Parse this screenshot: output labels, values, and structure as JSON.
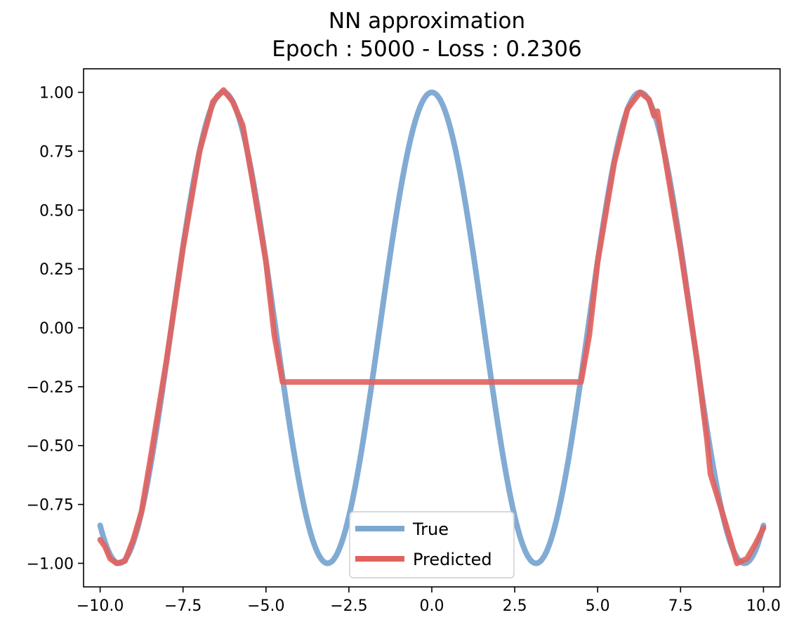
{
  "chart_data": {
    "type": "line",
    "title_line1": "NN approximation",
    "title_line2": "Epoch : 5000 - Loss : 0.2306",
    "xlabel": "",
    "ylabel": "",
    "xlim": [
      -10.5,
      10.5
    ],
    "ylim": [
      -1.1,
      1.1
    ],
    "grid": false,
    "legend_position": "lower-center",
    "xticks": [
      -10.0,
      -7.5,
      -5.0,
      -2.5,
      0.0,
      2.5,
      5.0,
      7.5,
      10.0
    ],
    "xtick_labels": [
      "−10.0",
      "−7.5",
      "−5.0",
      "−2.5",
      "0.0",
      "2.5",
      "5.0",
      "7.5",
      "10.0"
    ],
    "yticks": [
      1.0,
      0.75,
      0.5,
      0.25,
      0.0,
      -0.25,
      -0.5,
      -0.75,
      -1.0
    ],
    "ytick_labels": [
      "1.00",
      "0.75",
      "0.50",
      "0.25",
      "0.00",
      "−0.25",
      "−0.50",
      "−0.75",
      "−1.00"
    ],
    "series": [
      {
        "name": "True",
        "color": "#7ba7d1",
        "function": "cos",
        "x_range": [
          -10,
          10
        ]
      },
      {
        "name": "Predicted",
        "color": "#e3615c",
        "points": [
          [
            -10.0,
            -0.9
          ],
          [
            -9.85,
            -0.93
          ],
          [
            -9.7,
            -0.98
          ],
          [
            -9.5,
            -1.0
          ],
          [
            -9.25,
            -0.99
          ],
          [
            -9.0,
            -0.9
          ],
          [
            -8.75,
            -0.78
          ],
          [
            -8.5,
            -0.57
          ],
          [
            -8.0,
            -0.14
          ],
          [
            -7.5,
            0.34
          ],
          [
            -7.0,
            0.75
          ],
          [
            -6.6,
            0.96
          ],
          [
            -6.28,
            1.01
          ],
          [
            -6.0,
            0.96
          ],
          [
            -5.7,
            0.86
          ],
          [
            -5.4,
            0.62
          ],
          [
            -5.0,
            0.28
          ],
          [
            -4.75,
            -0.03
          ],
          [
            -4.5,
            -0.23
          ],
          [
            4.5,
            -0.23
          ],
          [
            4.75,
            -0.03
          ],
          [
            5.0,
            0.28
          ],
          [
            5.5,
            0.7
          ],
          [
            5.9,
            0.93
          ],
          [
            6.28,
            1.0
          ],
          [
            6.55,
            0.97
          ],
          [
            6.7,
            0.9
          ],
          [
            6.8,
            0.92
          ],
          [
            7.0,
            0.75
          ],
          [
            7.5,
            0.33
          ],
          [
            8.0,
            -0.14
          ],
          [
            8.3,
            -0.48
          ],
          [
            8.4,
            -0.62
          ],
          [
            8.75,
            -0.78
          ],
          [
            9.0,
            -0.9
          ],
          [
            9.2,
            -1.0
          ],
          [
            9.5,
            -0.98
          ],
          [
            9.75,
            -0.92
          ],
          [
            10.0,
            -0.85
          ]
        ]
      }
    ]
  }
}
